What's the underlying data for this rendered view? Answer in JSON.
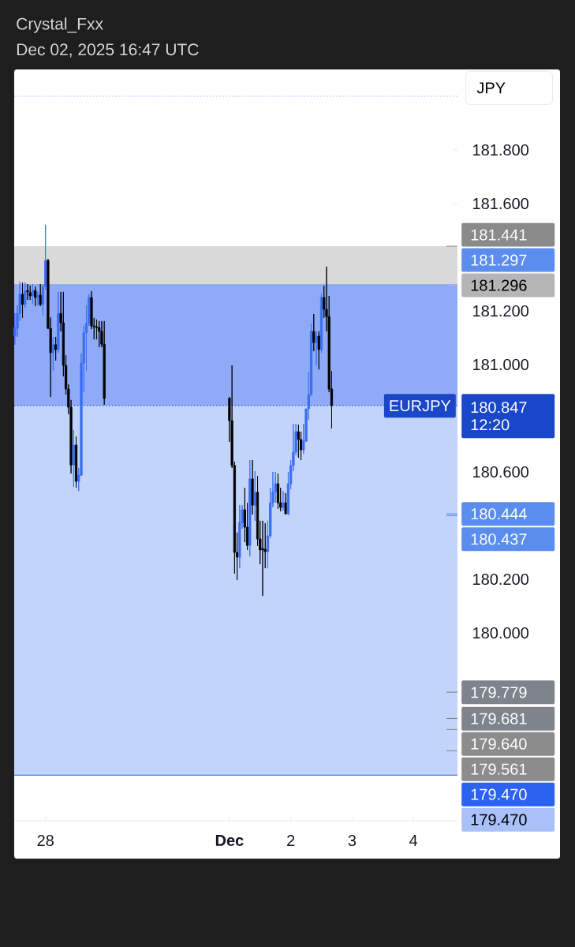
{
  "chart_data": {
    "type": "candlestick",
    "title": "Crystal_Fxx",
    "subtitle": "Dec 02, 2025 16:47 UTC",
    "ylabel": "JPY",
    "x": [
      "2025-11-27T12:00",
      "2025-11-27T13:00",
      "2025-11-27T14:00",
      "2025-11-27T15:00",
      "2025-11-27T16:00",
      "2025-11-27T17:00",
      "2025-11-27T18:00",
      "2025-11-27T19:00",
      "2025-11-27T20:00",
      "2025-11-27T21:00",
      "2025-11-27T22:00",
      "2025-11-27T23:00",
      "2025-11-28T00:00",
      "2025-11-28T01:00",
      "2025-11-28T02:00",
      "2025-11-28T03:00",
      "2025-11-28T04:00",
      "2025-11-28T05:00",
      "2025-11-28T06:00",
      "2025-11-28T07:00",
      "2025-11-28T08:00",
      "2025-11-28T09:00",
      "2025-11-28T10:00",
      "2025-11-28T11:00",
      "2025-11-28T12:00",
      "2025-11-28T13:00",
      "2025-11-28T14:00",
      "2025-11-28T15:00",
      "2025-11-28T16:00",
      "2025-11-28T17:00",
      "2025-11-28T18:00",
      "2025-11-28T19:00",
      "2025-11-28T20:00",
      "2025-11-28T21:00",
      "2025-11-28T22:00",
      "2025-11-28T23:00",
      "2025-12-01T00:00",
      "2025-12-01T01:00",
      "2025-12-01T02:00",
      "2025-12-01T03:00",
      "2025-12-01T04:00",
      "2025-12-01T05:00",
      "2025-12-01T06:00",
      "2025-12-01T07:00",
      "2025-12-01T08:00",
      "2025-12-01T09:00",
      "2025-12-01T10:00",
      "2025-12-01T11:00",
      "2025-12-01T12:00",
      "2025-12-01T13:00",
      "2025-12-01T14:00",
      "2025-12-01T15:00",
      "2025-12-01T16:00",
      "2025-12-01T17:00",
      "2025-12-01T18:00",
      "2025-12-01T19:00",
      "2025-12-01T20:00",
      "2025-12-01T21:00",
      "2025-12-01T22:00",
      "2025-12-01T23:00",
      "2025-12-02T00:00",
      "2025-12-02T01:00",
      "2025-12-02T02:00",
      "2025-12-02T03:00",
      "2025-12-02T04:00",
      "2025-12-02T05:00",
      "2025-12-02T06:00",
      "2025-12-02T07:00",
      "2025-12-02T08:00",
      "2025-12-02T09:00",
      "2025-12-02T10:00",
      "2025-12-02T11:00",
      "2025-12-02T12:00",
      "2025-12-02T13:00",
      "2025-12-02T14:00",
      "2025-12-02T15:00",
      "2025-12-02T16:00"
    ],
    "ohlc": [
      [
        181.106,
        181.191,
        181.074,
        181.138
      ],
      [
        181.135,
        181.221,
        181.103,
        181.191
      ],
      [
        181.191,
        181.309,
        181.162,
        181.262
      ],
      [
        181.262,
        181.306,
        181.174,
        181.224
      ],
      [
        181.224,
        181.306,
        181.212,
        181.274
      ],
      [
        181.276,
        181.3,
        181.241,
        181.271
      ],
      [
        181.268,
        181.294,
        181.241,
        181.256
      ],
      [
        181.256,
        181.3,
        181.226,
        181.276
      ],
      [
        181.276,
        181.291,
        181.218,
        181.25
      ],
      [
        181.25,
        181.271,
        181.221,
        181.259
      ],
      [
        181.259,
        181.3,
        181.218,
        181.224
      ],
      [
        181.224,
        181.3,
        181.182,
        181.291
      ],
      [
        181.291,
        181.521,
        181.279,
        181.388
      ],
      [
        181.388,
        181.394,
        181.132,
        181.135
      ],
      [
        181.135,
        181.176,
        180.879,
        181.044
      ],
      [
        181.044,
        181.103,
        180.976,
        181.074
      ],
      [
        181.074,
        181.103,
        181.015,
        181.056
      ],
      [
        181.056,
        181.271,
        181.044,
        181.191
      ],
      [
        181.191,
        181.271,
        181.124,
        181.156
      ],
      [
        181.156,
        181.271,
        180.956,
        180.997
      ],
      [
        180.997,
        181.035,
        180.888,
        180.909
      ],
      [
        180.909,
        180.926,
        180.815,
        180.841
      ],
      [
        180.841,
        180.868,
        180.594,
        180.626
      ],
      [
        180.626,
        180.756,
        180.544,
        180.7
      ],
      [
        180.7,
        180.732,
        180.541,
        180.565
      ],
      [
        180.565,
        180.615,
        180.529,
        180.588
      ],
      [
        180.588,
        181.041,
        180.585,
        181.006
      ],
      [
        181.006,
        181.144,
        180.897,
        181.118
      ],
      [
        181.118,
        181.221,
        180.976,
        181.153
      ],
      [
        181.153,
        181.262,
        181.144,
        181.25
      ],
      [
        181.25,
        181.274,
        181.132,
        181.144
      ],
      [
        181.144,
        181.174,
        181.094,
        181.141
      ],
      [
        181.141,
        181.168,
        181.094,
        181.138
      ],
      [
        181.138,
        181.162,
        181.065,
        181.124
      ],
      [
        181.124,
        181.162,
        181.065,
        181.076
      ],
      [
        181.076,
        181.162,
        180.85,
        180.874
      ],
      [
        180.874,
        180.879,
        180.712,
        180.791
      ],
      [
        180.791,
        180.997,
        180.615,
        180.624
      ],
      [
        180.624,
        180.638,
        180.221,
        180.3
      ],
      [
        180.3,
        180.374,
        180.197,
        180.282
      ],
      [
        180.282,
        180.476,
        180.241,
        180.412
      ],
      [
        180.412,
        180.476,
        180.388,
        180.459
      ],
      [
        180.459,
        180.541,
        180.338,
        180.394
      ],
      [
        180.394,
        180.485,
        180.309,
        180.326
      ],
      [
        180.326,
        180.644,
        180.285,
        180.574
      ],
      [
        180.574,
        180.644,
        180.441,
        180.476
      ],
      [
        180.476,
        180.603,
        180.418,
        180.524
      ],
      [
        180.524,
        180.585,
        180.324,
        180.35
      ],
      [
        180.35,
        180.418,
        180.256,
        180.309
      ],
      [
        180.315,
        180.418,
        180.138,
        180.309
      ],
      [
        180.312,
        180.409,
        180.241,
        180.303
      ],
      [
        180.303,
        180.418,
        180.241,
        180.362
      ],
      [
        180.362,
        180.541,
        180.353,
        180.485
      ],
      [
        180.485,
        180.6,
        180.468,
        180.526
      ],
      [
        180.526,
        180.6,
        180.485,
        180.556
      ],
      [
        180.556,
        180.594,
        180.462,
        180.485
      ],
      [
        180.485,
        180.541,
        180.453,
        180.468
      ],
      [
        180.468,
        180.529,
        180.456,
        180.485
      ],
      [
        180.485,
        180.521,
        180.441,
        180.444
      ],
      [
        180.444,
        180.6,
        180.438,
        180.556
      ],
      [
        180.556,
        180.644,
        180.535,
        180.624
      ],
      [
        180.624,
        180.779,
        180.603,
        180.674
      ],
      [
        180.674,
        180.779,
        180.662,
        180.75
      ],
      [
        180.75,
        180.776,
        180.653,
        180.721
      ],
      [
        180.721,
        180.75,
        180.644,
        180.682
      ],
      [
        180.682,
        180.779,
        180.668,
        180.715
      ],
      [
        180.715,
        180.835,
        180.712,
        180.835
      ],
      [
        180.835,
        180.971,
        180.794,
        180.888
      ],
      [
        180.888,
        181.153,
        180.882,
        181.124
      ],
      [
        181.124,
        181.188,
        181.05,
        181.082
      ],
      [
        181.082,
        181.124,
        180.997,
        181.106
      ],
      [
        181.106,
        181.124,
        180.982,
        181.056
      ],
      [
        181.056,
        181.265,
        181.044,
        181.25
      ],
      [
        181.25,
        181.294,
        181.174,
        181.206
      ],
      [
        181.206,
        181.365,
        181.124,
        181.179
      ],
      [
        181.179,
        181.256,
        180.897,
        180.909
      ],
      [
        180.909,
        180.976,
        180.762,
        180.847
      ]
    ],
    "colors": [
      "#3a6df0",
      "#3a6df0",
      "#3a6df0",
      "#000000",
      "#3a6df0",
      "#000000",
      "#000000",
      "#3a6df0",
      "#000000",
      "#3a6df0",
      "#000000",
      "#3a6df0",
      "#3a6df0",
      "#000000",
      "#000000",
      "#3a6df0",
      "#000000",
      "#3a6df0",
      "#000000",
      "#000000",
      "#000000",
      "#000000",
      "#000000",
      "#3a6df0",
      "#000000",
      "#3a6df0",
      "#3a6df0",
      "#3a6df0",
      "#3a6df0",
      "#3a6df0",
      "#000000",
      "#000000",
      "#000000",
      "#000000",
      "#000000",
      "#000000",
      "#000000",
      "#000000",
      "#000000",
      "#000000",
      "#3a6df0",
      "#3a6df0",
      "#000000",
      "#000000",
      "#3a6df0",
      "#000000",
      "#3a6df0",
      "#000000",
      "#000000",
      "#000000",
      "#000000",
      "#3a6df0",
      "#3a6df0",
      "#3a6df0",
      "#3a6df0",
      "#000000",
      "#000000",
      "#3a6df0",
      "#000000",
      "#3a6df0",
      "#3a6df0",
      "#3a6df0",
      "#3a6df0",
      "#000000",
      "#000000",
      "#3a6df0",
      "#3a6df0",
      "#3a6df0",
      "#3a6df0",
      "#000000",
      "#3a6df0",
      "#000000",
      "#3a6df0",
      "#000000",
      "#000000",
      "#000000",
      "#000000"
    ],
    "xlim": [
      "2025-11-27T11:45",
      "2025-12-04T17:15"
    ],
    "ylim": [
      179.3,
      182.1
    ],
    "xticks": [
      {
        "value": "2025-11-28",
        "label": "28"
      },
      {
        "value": "2025-12-01",
        "label": "**Dec**"
      },
      {
        "value": "2025-12-02",
        "label": "2"
      },
      {
        "value": "2025-12-03",
        "label": "3"
      },
      {
        "value": "2025-12-04",
        "label": "4"
      }
    ],
    "yticks": [
      {
        "value": 180.0,
        "label": "180.000"
      },
      {
        "value": 180.2,
        "label": "180.200"
      },
      {
        "value": 180.6,
        "label": "180.600"
      },
      {
        "value": 181.0,
        "label": "181.000"
      },
      {
        "value": 181.2,
        "label": "181.200"
      },
      {
        "value": 181.6,
        "label": "181.600"
      },
      {
        "value": 181.8,
        "label": "181.800"
      }
    ],
    "bands": [
      {
        "axis": "y",
        "from": 181.296,
        "to": 181.441,
        "color": "#d9d9d9"
      },
      {
        "axis": "y",
        "from": 180.847,
        "to": 181.296,
        "color": "#8fabf8"
      },
      {
        "axis": "y",
        "from": 179.47,
        "to": 180.847,
        "color": "#c3d4fb"
      }
    ],
    "ref_lines": [
      {
        "axis": "y",
        "value": 182.0,
        "label": null,
        "color": "#9db7f5",
        "line_style": "dotted"
      },
      {
        "axis": "y",
        "value": 181.441,
        "label": "181.441",
        "color": "#8a8a8a"
      },
      {
        "axis": "y",
        "value": 181.297,
        "label": "181.297",
        "color": "#5b8def",
        "line_style": "solid"
      },
      {
        "axis": "y",
        "value": 181.296,
        "label": "181.296",
        "color": "#b5b5b5"
      },
      {
        "axis": "y",
        "value": 180.847,
        "label": "180.847",
        "color": "#1a47c9",
        "line_style": "dotted"
      },
      {
        "axis": "y",
        "value": 180.444,
        "label": "180.444",
        "color": "#5b8def"
      },
      {
        "axis": "y",
        "value": 180.437,
        "label": "180.437",
        "color": "#5b8def"
      },
      {
        "axis": "y",
        "value": 179.779,
        "label": "179.779",
        "color": "#7f838c"
      },
      {
        "axis": "y",
        "value": 179.681,
        "label": "179.681",
        "color": "#7f838c"
      },
      {
        "axis": "y",
        "value": 179.64,
        "label": "179.640",
        "color": "#8c8c8c"
      },
      {
        "axis": "y",
        "value": 179.561,
        "label": "179.561",
        "color": "#8c8c8c"
      },
      {
        "axis": "y",
        "value": 179.47,
        "label": "179.470",
        "color": "#2c62f0",
        "line_style": "solid"
      }
    ],
    "annotations": [
      "EURJPY",
      "12:20",
      "179.470"
    ]
  }
}
